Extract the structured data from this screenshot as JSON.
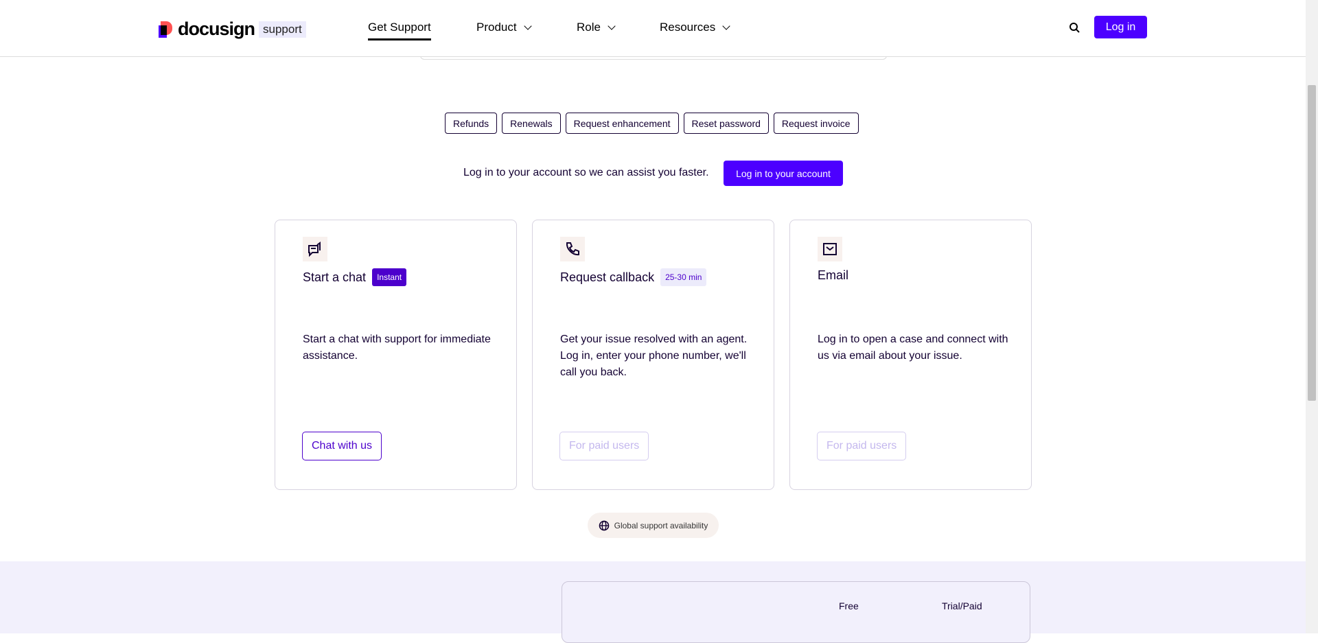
{
  "header": {
    "logo_text": "docusign",
    "logo_sub": "support",
    "nav": [
      {
        "label": "Get Support",
        "active": true
      },
      {
        "label": "Product"
      },
      {
        "label": "Role"
      },
      {
        "label": "Resources"
      }
    ],
    "login_label": "Log in"
  },
  "quick_links": [
    "Refunds",
    "Renewals",
    "Request enhancement",
    "Reset password",
    "Request invoice"
  ],
  "login_prompt": {
    "text": "Log in to your account so we can assist you faster.",
    "button": "Log in to your account"
  },
  "cards": [
    {
      "icon": "chat-icon",
      "title": "Start a chat",
      "badge": "Instant",
      "description": "Start a chat with support for immediate assistance.",
      "button": "Chat with us"
    },
    {
      "icon": "phone-icon",
      "title": "Request callback",
      "badge": "25-30 min",
      "description": "Get your issue resolved with an agent. Log in, enter your phone number, we'll call you back.",
      "button": "For paid users"
    },
    {
      "icon": "mail-icon",
      "title": "Email",
      "description": "Log in to open a case and connect with us via email about your issue.",
      "button": "For paid users"
    }
  ],
  "global_availability": "Global support availability",
  "comparison": {
    "columns": [
      "Free",
      "Trial/Paid"
    ]
  },
  "colors": {
    "brand": "#4c00ff",
    "badge_dark": "#4c00cc",
    "badge_light": "#ecebfb"
  }
}
